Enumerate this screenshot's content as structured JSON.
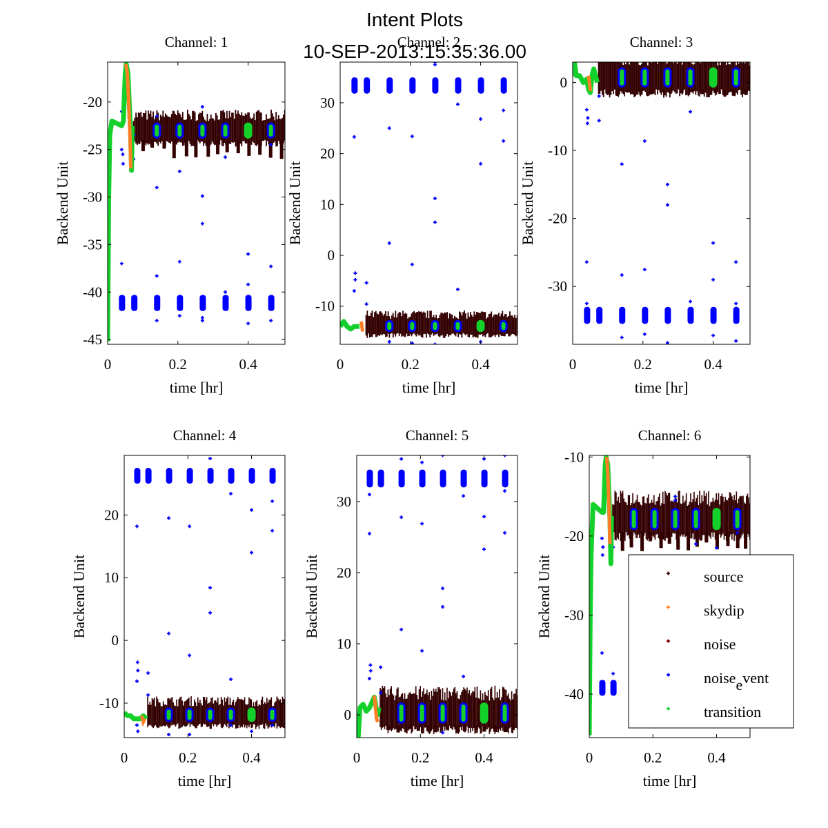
{
  "figure": {
    "title_line1": "Intent Plots",
    "title_line2": "10-SEP-2013:15:35:36.00"
  },
  "chart_data": {
    "type": "scatter",
    "title": "Intent Plots 10-SEP-2013:15:35:36.00",
    "xlabel": "time [hr]",
    "ylabel": "Backend Unit",
    "xlim": [
      0,
      0.505
    ],
    "xticks": [
      0,
      0.2,
      0.4
    ],
    "xtick_labels": [
      "0",
      "0.2",
      "0.4"
    ],
    "grid": false,
    "series_styles": [
      {
        "name": "source",
        "label": "source",
        "color": "#330000"
      },
      {
        "name": "skydip",
        "label": "skydip",
        "color": "#ff7f27"
      },
      {
        "name": "noise",
        "label": "noise",
        "color": "#7f0000"
      },
      {
        "name": "noise_event",
        "label": "noise",
        "label_sub": "e",
        "label_rest": "vent",
        "color": "#0000ff"
      },
      {
        "name": "transition",
        "label": "transition",
        "color": "#14d02a"
      }
    ],
    "legend": {
      "placement": "lower-right",
      "panel": 6
    },
    "noise_event_times": [
      0.04,
      0.075,
      0.14,
      0.205,
      0.27,
      0.335,
      0.4,
      0.465
    ],
    "panels": [
      {
        "title": "Channel: 1",
        "ylim": [
          -45.5,
          -15.8
        ],
        "yticks": [
          -45,
          -40,
          -35,
          -30,
          -25,
          -20
        ],
        "source_band": [
          -24.0,
          -22.0
        ],
        "source_dips": -26.0,
        "noise_event_cluster": [
          -42.0,
          -40.3
        ],
        "transition_start": {
          "t": [
            0,
            0.003,
            0.006,
            0.012,
            0.04,
            0.045,
            0.05,
            0.053,
            0.058,
            0.065,
            0.068,
            0.07
          ],
          "v": [
            -45.2,
            -30,
            -23.5,
            -22,
            -22.5,
            -22,
            -17,
            -16,
            -17,
            -23,
            -27.2,
            -22.5
          ]
        },
        "skydip": {
          "t": [
            0.052,
            0.056,
            0.06,
            0.064,
            0.066
          ],
          "v": [
            -16,
            -17,
            -20,
            -24,
            -27
          ]
        },
        "outliers": [
          [
            0.04,
            -21
          ],
          [
            0.04,
            -25
          ],
          [
            0.043,
            -25.5
          ],
          [
            0.044,
            -26.5
          ],
          [
            0.04,
            -37
          ],
          [
            0.075,
            -23.5
          ],
          [
            0.074,
            -26
          ],
          [
            0.14,
            -21.5
          ],
          [
            0.14,
            -29
          ],
          [
            0.14,
            -38.3
          ],
          [
            0.14,
            -43
          ],
          [
            0.205,
            -27.3
          ],
          [
            0.205,
            -36.8
          ],
          [
            0.205,
            -42.5
          ],
          [
            0.27,
            -20.5
          ],
          [
            0.27,
            -29.9
          ],
          [
            0.27,
            -32.8
          ],
          [
            0.27,
            -42.7
          ],
          [
            0.27,
            -43
          ],
          [
            0.335,
            -25.8
          ],
          [
            0.335,
            -40
          ],
          [
            0.4,
            -36
          ],
          [
            0.4,
            -39.2
          ],
          [
            0.4,
            -43.3
          ],
          [
            0.465,
            -24.5
          ],
          [
            0.465,
            -37.3
          ],
          [
            0.465,
            -40.5
          ],
          [
            0.465,
            -43
          ]
        ]
      },
      {
        "title": "Channel: 2",
        "ylim": [
          -17.5,
          38
        ],
        "yticks": [
          -10,
          0,
          10,
          20,
          30
        ],
        "source_band": [
          -15.3,
          -12.5
        ],
        "source_dips": -15.5,
        "noise_event_cluster": [
          31.8,
          35
        ],
        "transition_start": {
          "t": [
            0,
            0.01,
            0.02,
            0.03,
            0.04,
            0.05,
            0.055
          ],
          "v": [
            -14,
            -13,
            -14,
            -14.5,
            -14,
            -14,
            -14
          ]
        },
        "skydip": {
          "t": [
            0.06,
            0.062,
            0.064
          ],
          "v": [
            -13,
            -14,
            -15
          ]
        },
        "outliers": [
          [
            0.04,
            23.3
          ],
          [
            0.043,
            -3.5
          ],
          [
            0.043,
            -4.8
          ],
          [
            0.04,
            -7
          ],
          [
            0.075,
            -5.4
          ],
          [
            0.075,
            -9.6
          ],
          [
            0.14,
            25
          ],
          [
            0.14,
            2.4
          ],
          [
            0.205,
            23.4
          ],
          [
            0.205,
            -1.8
          ],
          [
            0.27,
            11.2
          ],
          [
            0.27,
            6.5
          ],
          [
            0.335,
            29.7
          ],
          [
            0.335,
            -6.7
          ],
          [
            0.4,
            26.8
          ],
          [
            0.4,
            18
          ],
          [
            0.465,
            28.5
          ],
          [
            0.465,
            22.5
          ],
          [
            0.27,
            37.5
          ],
          [
            0.27,
            38
          ],
          [
            0.14,
            -17
          ],
          [
            0.205,
            -17.3
          ],
          [
            0.27,
            -17.5
          ],
          [
            0.4,
            -17
          ]
        ]
      },
      {
        "title": "Channel: 3",
        "ylim": [
          -38.5,
          3
        ],
        "yticks": [
          -30,
          -20,
          -10,
          0
        ],
        "source_band": [
          -1.0,
          2.5
        ],
        "source_dips": -2.0,
        "noise_event_cluster": [
          -35.5,
          -33
        ],
        "transition_start": {
          "t": [
            0,
            0.005,
            0.01,
            0.02,
            0.03,
            0.04,
            0.045,
            0.05,
            0.055,
            0.06,
            0.07
          ],
          "v": [
            1,
            3,
            1,
            1,
            0,
            0.5,
            -1,
            -1.5,
            1,
            2,
            0
          ]
        },
        "skydip": {
          "t": [
            0.045,
            0.05,
            0.055
          ],
          "v": [
            1,
            -1,
            -1
          ]
        },
        "outliers": [
          [
            0.04,
            -4
          ],
          [
            0.043,
            -5.2
          ],
          [
            0.042,
            -6
          ],
          [
            0.04,
            -26.4
          ],
          [
            0.04,
            -32.5
          ],
          [
            0.075,
            -2
          ],
          [
            0.075,
            -5.6
          ],
          [
            0.14,
            -12
          ],
          [
            0.14,
            -28.3
          ],
          [
            0.14,
            -37.5
          ],
          [
            0.205,
            -8.6
          ],
          [
            0.205,
            -27.5
          ],
          [
            0.205,
            -37
          ],
          [
            0.27,
            -15
          ],
          [
            0.27,
            -18
          ],
          [
            0.27,
            -38.3
          ],
          [
            0.335,
            -4.3
          ],
          [
            0.335,
            -32.2
          ],
          [
            0.4,
            -23.6
          ],
          [
            0.4,
            -29
          ],
          [
            0.4,
            -37.2
          ],
          [
            0.465,
            -26.4
          ],
          [
            0.465,
            -32.5
          ],
          [
            0.465,
            -38
          ]
        ]
      },
      {
        "title": "Channel: 4",
        "ylim": [
          -15.5,
          29.5
        ],
        "yticks": [
          -10,
          0,
          10,
          20
        ],
        "source_band": [
          -13.2,
          -10.5
        ],
        "source_dips": -13.5,
        "noise_event_cluster": [
          25,
          27.5
        ],
        "transition_start": {
          "t": [
            0,
            0.01,
            0.02,
            0.03,
            0.04,
            0.05,
            0.06,
            0.07
          ],
          "v": [
            -11.5,
            -12,
            -12,
            -12.5,
            -12.5,
            -12.5,
            -12,
            -12.5
          ]
        },
        "skydip": {
          "t": [
            0.055,
            0.06,
            0.065
          ],
          "v": [
            -12,
            -13,
            -12.5
          ]
        },
        "outliers": [
          [
            0.04,
            18.2
          ],
          [
            0.042,
            -3.5
          ],
          [
            0.043,
            -4.8
          ],
          [
            0.04,
            -6.5
          ],
          [
            0.04,
            -13.5
          ],
          [
            0.043,
            -14.5
          ],
          [
            0.075,
            -5.2
          ],
          [
            0.075,
            -8.7
          ],
          [
            0.14,
            19.5
          ],
          [
            0.14,
            1.1
          ],
          [
            0.14,
            -15
          ],
          [
            0.205,
            18.2
          ],
          [
            0.205,
            -2.4
          ],
          [
            0.205,
            -15
          ],
          [
            0.27,
            8.4
          ],
          [
            0.27,
            4.4
          ],
          [
            0.27,
            29
          ],
          [
            0.335,
            23.4
          ],
          [
            0.335,
            -6.2
          ],
          [
            0.335,
            -13.5
          ],
          [
            0.4,
            20.8
          ],
          [
            0.4,
            14
          ],
          [
            0.4,
            -14.5
          ],
          [
            0.465,
            22.2
          ],
          [
            0.465,
            17.5
          ],
          [
            0.465,
            -13.5
          ]
        ]
      },
      {
        "title": "Channel: 5",
        "ylim": [
          -3.2,
          36.5
        ],
        "yticks": [
          0,
          10,
          20,
          30
        ],
        "source_band": [
          -1.5,
          2.0
        ],
        "source_dips": -2.5,
        "noise_event_cluster": [
          32,
          34.5
        ],
        "transition_start": {
          "t": [
            0,
            0.005,
            0.01,
            0.02,
            0.03,
            0.04,
            0.05,
            0.055,
            0.065,
            0.07
          ],
          "v": [
            0,
            -3,
            1,
            1.5,
            0.5,
            1,
            2,
            2.5,
            0,
            1
          ]
        },
        "skydip": {
          "t": [
            0.055,
            0.058,
            0.062,
            0.066
          ],
          "v": [
            2.7,
            1.5,
            -0.5,
            -1
          ]
        },
        "outliers": [
          [
            0.04,
            25.5
          ],
          [
            0.043,
            7
          ],
          [
            0.044,
            6.2
          ],
          [
            0.04,
            5.1
          ],
          [
            0.04,
            31
          ],
          [
            0.075,
            6.7
          ],
          [
            0.075,
            3.1
          ],
          [
            0.14,
            27.8
          ],
          [
            0.14,
            12
          ],
          [
            0.14,
            36
          ],
          [
            0.205,
            26.9
          ],
          [
            0.205,
            9
          ],
          [
            0.205,
            35.5
          ],
          [
            0.27,
            17.8
          ],
          [
            0.27,
            15.2
          ],
          [
            0.27,
            -2.5
          ],
          [
            0.27,
            36.5
          ],
          [
            0.335,
            30.8
          ],
          [
            0.335,
            5.4
          ],
          [
            0.4,
            27.9
          ],
          [
            0.4,
            23.3
          ],
          [
            0.4,
            36
          ],
          [
            0.465,
            25.6
          ],
          [
            0.465,
            31.5
          ],
          [
            0.465,
            36.5
          ]
        ]
      },
      {
        "title": "Channel: 6",
        "ylim": [
          -45.5,
          -9.8
        ],
        "yticks": [
          -40,
          -30,
          -20,
          -10
        ],
        "source_band": [
          -19.5,
          -16.2
        ],
        "source_dips": -22.0,
        "noise_event_cluster": [
          -40.2,
          -38.2
        ],
        "noise_event_cluster_only_first": 2,
        "transition_start": {
          "t": [
            0,
            0.003,
            0.006,
            0.012,
            0.04,
            0.045,
            0.05,
            0.053,
            0.058,
            0.065,
            0.068,
            0.07
          ],
          "v": [
            -45.2,
            -30,
            -22,
            -16,
            -17,
            -17,
            -11,
            -10,
            -11,
            -18,
            -23.5,
            -17.5
          ]
        },
        "skydip": {
          "t": [
            0.055,
            0.058,
            0.062,
            0.065
          ],
          "v": [
            -10,
            -12,
            -16,
            -21
          ]
        },
        "outliers": [
          [
            0.04,
            -20.3
          ],
          [
            0.043,
            -21.4
          ],
          [
            0.042,
            -22.4
          ],
          [
            0.04,
            -34.8
          ],
          [
            0.075,
            -21.4
          ],
          [
            0.075,
            -37.4
          ],
          [
            0.27,
            -15
          ],
          [
            0.27,
            -15.5
          ],
          [
            0.335,
            -21
          ],
          [
            0.465,
            -19.6
          ],
          [
            0.4,
            -21.5
          ]
        ]
      }
    ]
  }
}
